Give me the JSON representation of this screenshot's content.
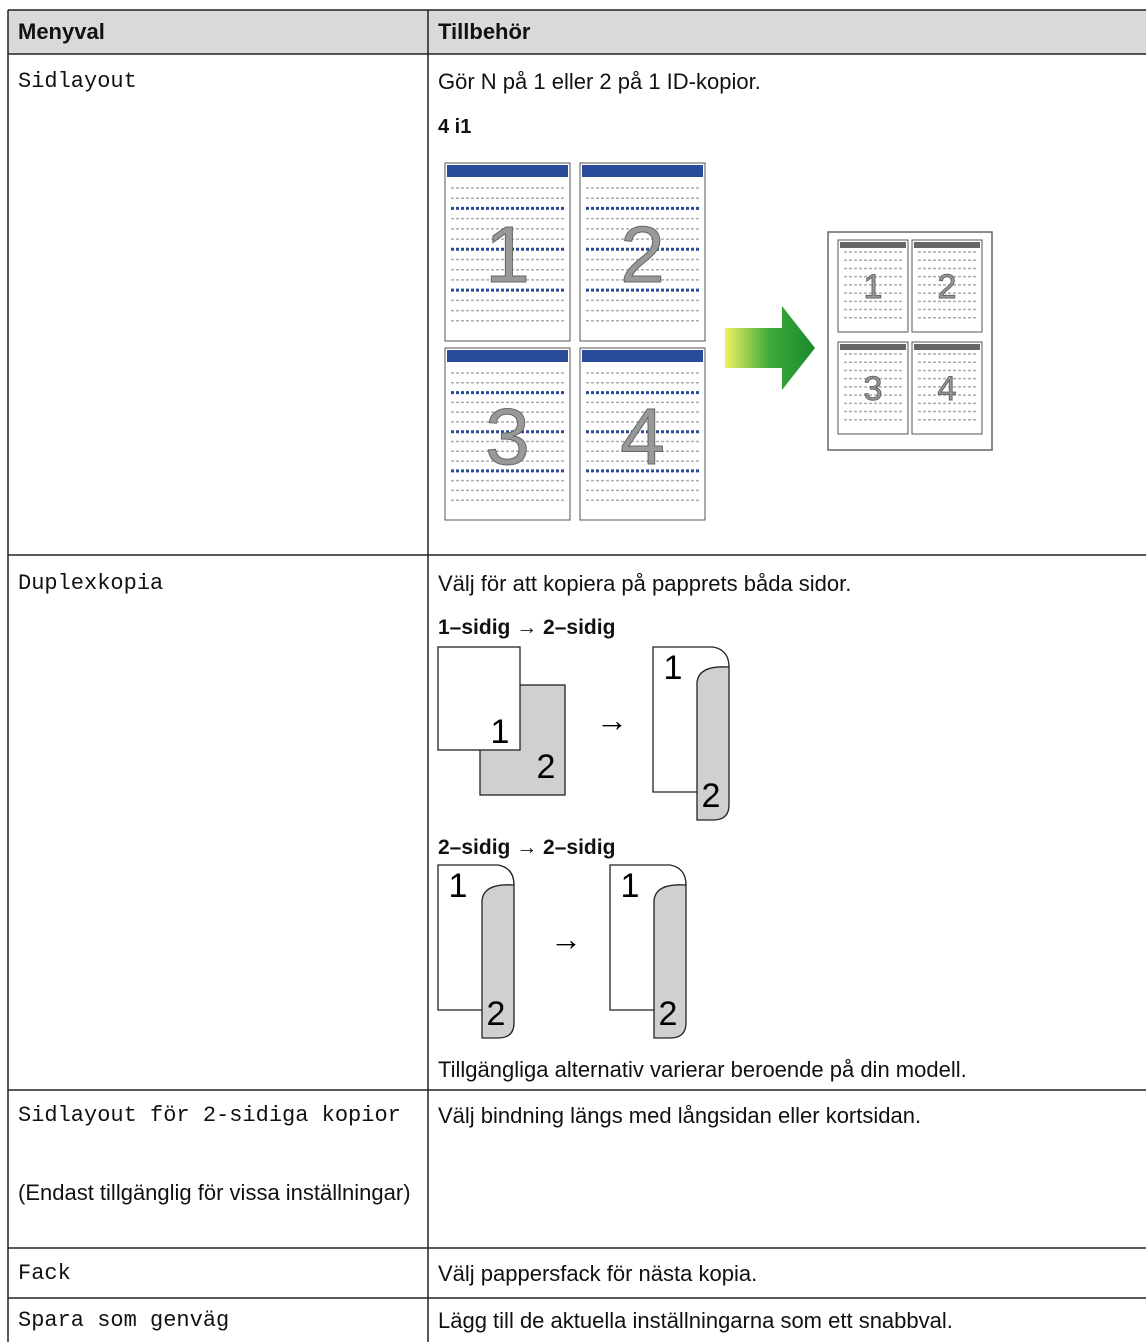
{
  "table": {
    "header": [
      "Menyval",
      "Tillbehör"
    ],
    "rows": [
      {
        "menu": "Sidlayout",
        "description": "Gör N på 1 eller 2 på 1 ID-kopior.",
        "figures": [
          {
            "caption": "4 i1",
            "labels": [
              "1",
              "2",
              "3",
              "4"
            ]
          }
        ]
      },
      {
        "menu": "Duplexkopia",
        "description": "Välj för att kopiera på papprets båda sidor.",
        "figures": [
          {
            "caption": "1–sidig → 2–sidig",
            "labels": [
              "1",
              "2",
              "1",
              "2"
            ],
            "arrow": "→"
          },
          {
            "caption": "2–sidig → 2–sidig",
            "labels": [
              "1",
              "2",
              "1",
              "2"
            ],
            "arrow": "→"
          }
        ],
        "footnote": "Tillgängliga alternativ varierar beroende på din modell."
      },
      {
        "menu": "Sidlayout för 2-sidiga kopior",
        "note": "(Endast tillgänglig för vissa inställningar)",
        "description": "Välj bindning längs med långsidan eller kortsidan."
      },
      {
        "menu": "Fack",
        "description": "Välj pappersfack för nästa kopia."
      },
      {
        "menu": "Spara som genväg",
        "description": "Lägg till de aktuella inställningarna som ett snabbval."
      }
    ]
  }
}
